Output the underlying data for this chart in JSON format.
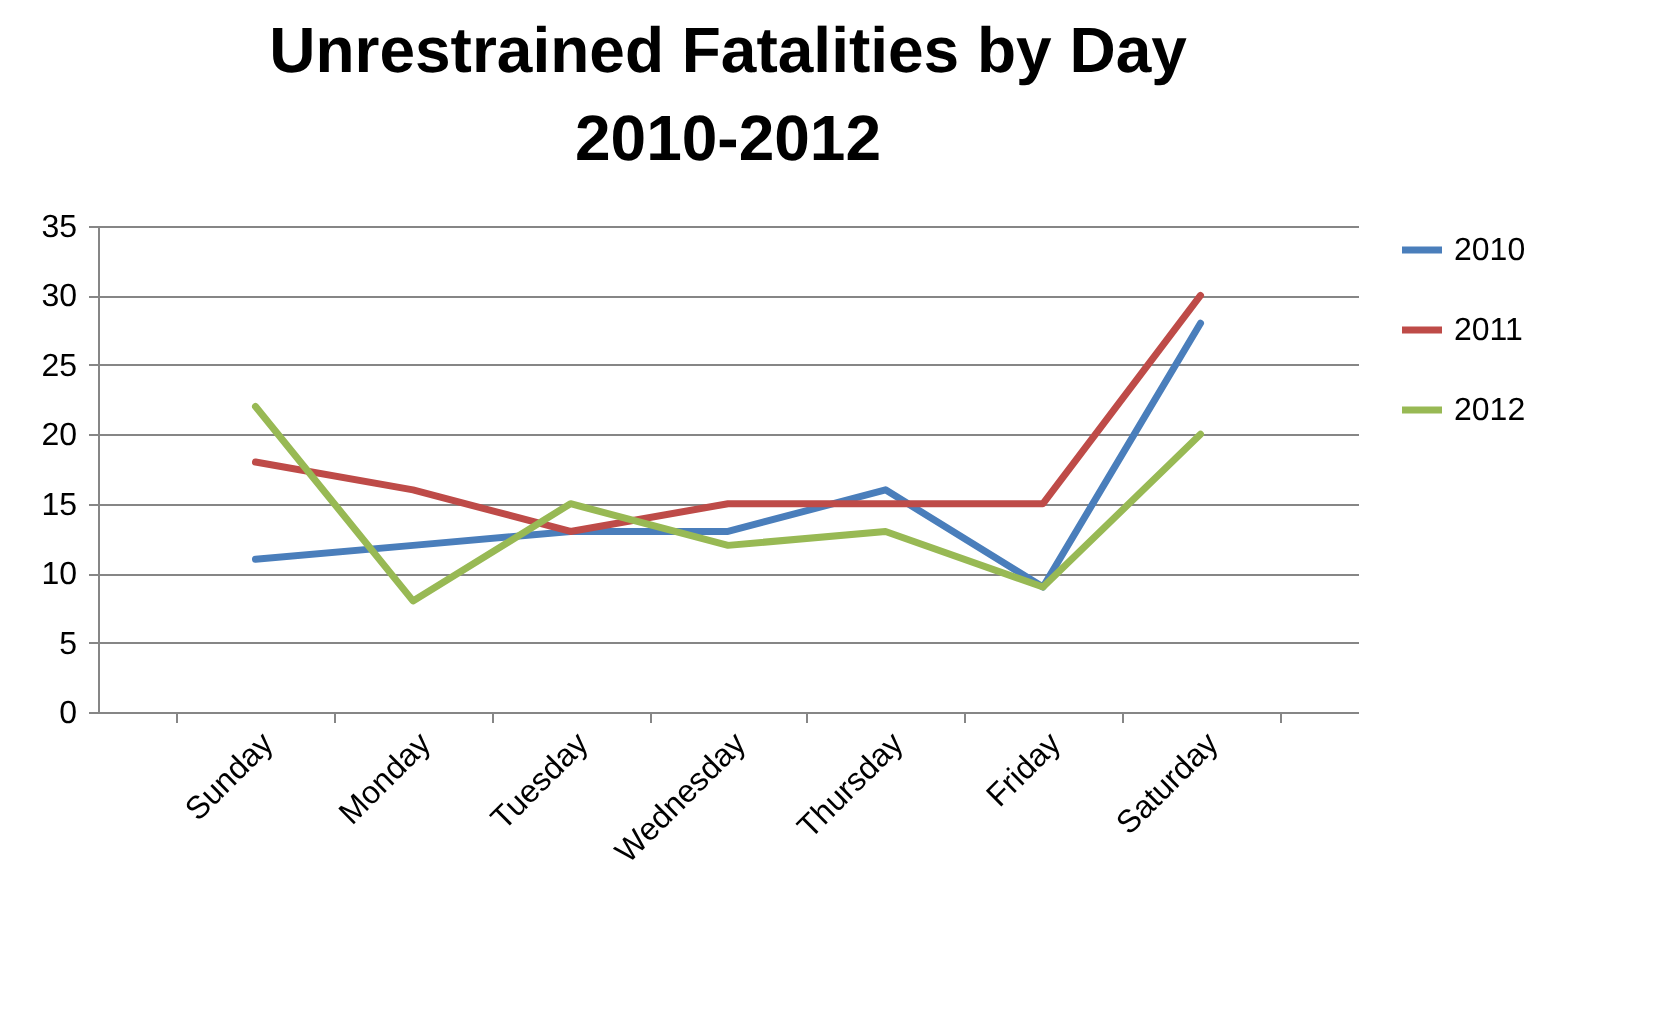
{
  "chart_data": {
    "type": "line",
    "title": "Unrestrained Fatalities by Day\n2010-2012",
    "categories": [
      "Sunday",
      "Monday",
      "Tuesday",
      "Wednesday",
      "Thursday",
      "Friday",
      "Saturday"
    ],
    "series": [
      {
        "name": "2010",
        "color": "#4a7ebb",
        "values": [
          11,
          12,
          13,
          13,
          16,
          9,
          28
        ]
      },
      {
        "name": "2011",
        "color": "#be4b48",
        "values": [
          18,
          16,
          13,
          15,
          15,
          15,
          30
        ]
      },
      {
        "name": "2012",
        "color": "#98b954",
        "values": [
          22,
          8,
          15,
          12,
          13,
          9,
          20
        ]
      }
    ],
    "ylim": [
      0,
      35
    ],
    "yticks": [
      0,
      5,
      10,
      15,
      20,
      25,
      30,
      35
    ],
    "grid": "y",
    "legend": "right",
    "marker": "none",
    "line_style": "solid"
  }
}
